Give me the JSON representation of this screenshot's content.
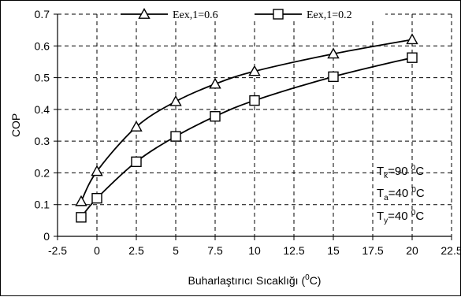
{
  "chart_data": {
    "type": "line",
    "xlabel": "Buharlaştırıcı Sıcaklığı (",
    "xlabel_sup": "0",
    "xlabel_unit": "C)",
    "ylabel": "COP",
    "xlim": [
      -2.5,
      22.5
    ],
    "ylim": [
      0,
      0.7
    ],
    "xticks": [
      -2.5,
      0,
      2.5,
      5,
      7.5,
      10,
      12.5,
      15,
      17.5,
      20,
      22.5
    ],
    "xtick_labels": [
      "-2.5",
      "0",
      "2.5",
      "5",
      "7.5",
      "10",
      "12.5",
      "15",
      "17.5",
      "20",
      "22.5"
    ],
    "yticks": [
      0,
      0.1,
      0.2,
      0.3,
      0.4,
      0.5,
      0.6,
      0.7
    ],
    "ytick_labels": [
      "0",
      "0.1",
      "0.2",
      "0.3",
      "0.4",
      "0.5",
      "0.6",
      "0.7"
    ],
    "grid": true,
    "legend_position": "top",
    "series": [
      {
        "name": "Eex,1=0.6",
        "marker": "triangle",
        "x": [
          -1,
          0,
          2.5,
          5,
          7.5,
          10,
          15,
          20
        ],
        "y": [
          0.11,
          0.205,
          0.345,
          0.425,
          0.48,
          0.52,
          0.575,
          0.62
        ]
      },
      {
        "name": "Eex,1=0.2",
        "marker": "square",
        "x": [
          -1,
          0,
          2.5,
          5,
          7.5,
          10,
          15,
          20
        ],
        "y": [
          0.06,
          0.12,
          0.235,
          0.315,
          0.378,
          0.428,
          0.503,
          0.563
        ]
      }
    ],
    "annotations": [
      {
        "base": "T",
        "sub": "k",
        "value": "=90 ",
        "sup": "0",
        "unit": "C"
      },
      {
        "base": "T",
        "sub": "a",
        "value": "=40 ",
        "sup": "0",
        "unit": "C"
      },
      {
        "base": "T",
        "sub": "y",
        "value": "=40 ",
        "sup": "0",
        "unit": "C"
      }
    ]
  }
}
